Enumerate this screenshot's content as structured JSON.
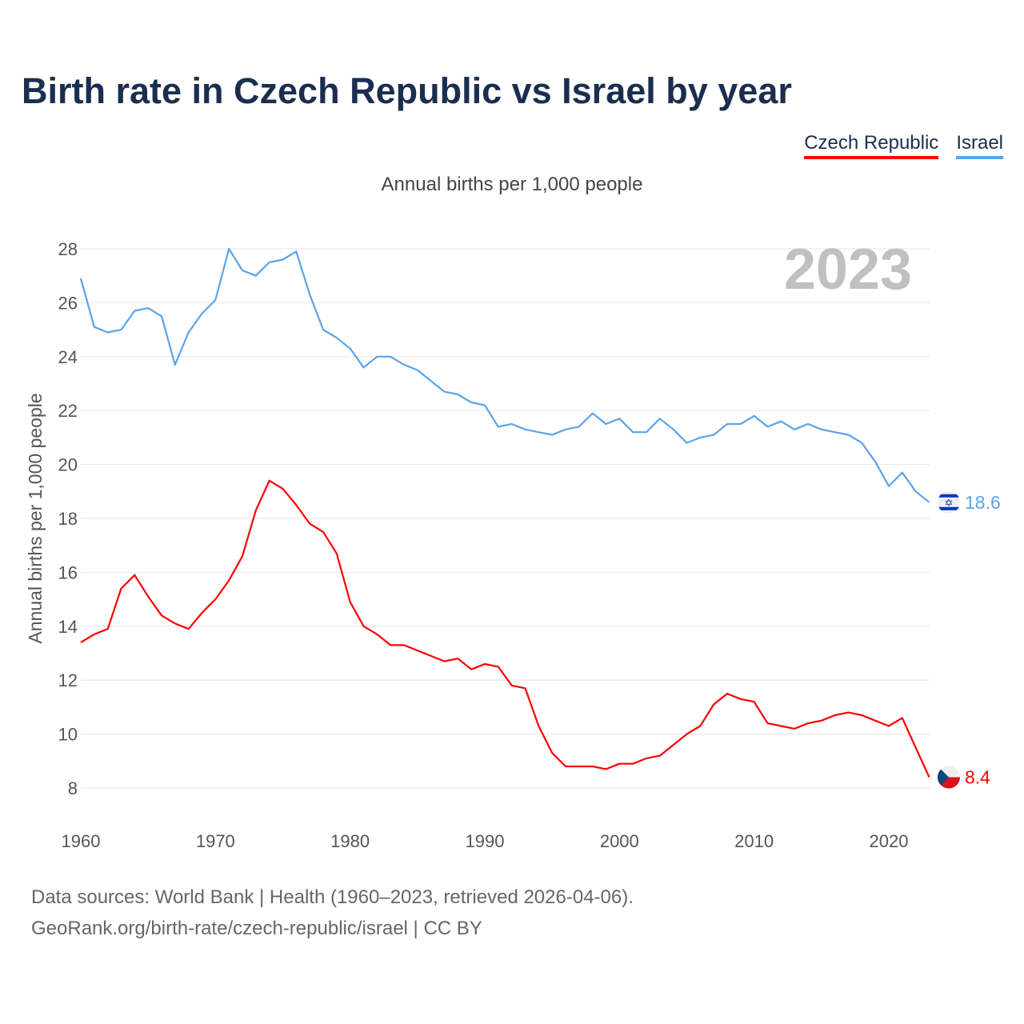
{
  "title": "Birth rate in Czech Republic vs Israel by year",
  "subtitle": "Annual births per 1,000 people",
  "sources": [
    "Data sources: World Bank | Health (1960–2023, retrieved 2026-04-06).",
    "GeoRank.org/birth-rate/czech-republic/israel | CC BY"
  ],
  "chart_data": {
    "type": "line",
    "title": "Birth rate in Czech Republic vs Israel by year",
    "xlabel": "",
    "ylabel": "Annual births per 1,000 people",
    "year_label": "2023",
    "xlim": [
      1960,
      2023
    ],
    "ylim": [
      7,
      29
    ],
    "yticks": [
      8,
      10,
      12,
      14,
      16,
      18,
      20,
      22,
      24,
      26,
      28
    ],
    "xticks": [
      1960,
      1970,
      1980,
      1990,
      2000,
      2010,
      2020
    ],
    "legend_position": "top-right",
    "grid": true,
    "x": [
      1960,
      1961,
      1962,
      1963,
      1964,
      1965,
      1966,
      1967,
      1968,
      1969,
      1970,
      1971,
      1972,
      1973,
      1974,
      1975,
      1976,
      1977,
      1978,
      1979,
      1980,
      1981,
      1982,
      1983,
      1984,
      1985,
      1986,
      1987,
      1988,
      1989,
      1990,
      1991,
      1992,
      1993,
      1994,
      1995,
      1996,
      1997,
      1998,
      1999,
      2000,
      2001,
      2002,
      2003,
      2004,
      2005,
      2006,
      2007,
      2008,
      2009,
      2010,
      2011,
      2012,
      2013,
      2014,
      2015,
      2016,
      2017,
      2018,
      2019,
      2020,
      2021,
      2022,
      2023
    ],
    "series": [
      {
        "name": "Czech Republic",
        "color": "#ff0000",
        "end_label": "8.4",
        "values": [
          13.4,
          13.7,
          13.9,
          15.4,
          15.9,
          15.1,
          14.4,
          14.1,
          13.9,
          14.5,
          15.0,
          15.7,
          16.6,
          18.3,
          19.4,
          19.1,
          18.5,
          17.8,
          17.5,
          16.7,
          14.9,
          14.0,
          13.7,
          13.3,
          13.3,
          13.1,
          12.9,
          12.7,
          12.8,
          12.4,
          12.6,
          12.5,
          11.8,
          11.7,
          10.3,
          9.3,
          8.8,
          8.8,
          8.8,
          8.7,
          8.9,
          8.9,
          9.1,
          9.2,
          9.6,
          10.0,
          10.3,
          11.1,
          11.5,
          11.3,
          11.2,
          10.4,
          10.3,
          10.2,
          10.4,
          10.5,
          10.7,
          10.8,
          10.7,
          10.5,
          10.3,
          10.6,
          9.5,
          8.4
        ]
      },
      {
        "name": "Israel",
        "color": "#5ba4ea",
        "end_label": "18.6",
        "values": [
          26.9,
          25.1,
          24.9,
          25.0,
          25.7,
          25.8,
          25.5,
          23.7,
          24.9,
          25.6,
          26.1,
          28.0,
          27.2,
          27.0,
          27.5,
          27.6,
          27.9,
          26.3,
          25.0,
          24.7,
          24.3,
          23.6,
          24.0,
          24.0,
          23.7,
          23.5,
          23.1,
          22.7,
          22.6,
          22.3,
          22.2,
          21.4,
          21.5,
          21.3,
          21.2,
          21.1,
          21.3,
          21.4,
          21.9,
          21.5,
          21.7,
          21.2,
          21.2,
          21.7,
          21.3,
          20.8,
          21.0,
          21.1,
          21.5,
          21.5,
          21.8,
          21.4,
          21.6,
          21.3,
          21.5,
          21.3,
          21.2,
          21.1,
          20.8,
          20.1,
          19.2,
          19.7,
          19.0,
          18.6
        ]
      }
    ]
  }
}
